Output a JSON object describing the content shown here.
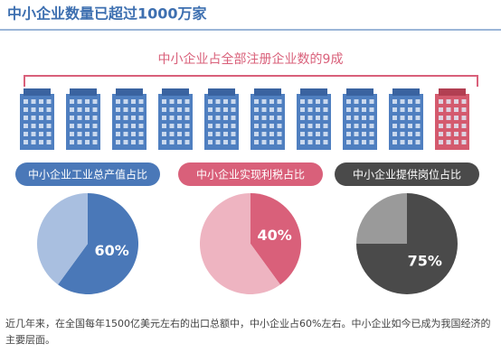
{
  "title": "中小企业数量已超过1000万家",
  "subtitle": "中小企业占全部注册企业数的9成",
  "note": "近几年来，在全国每年1500亿美元左右的出口总额中，中小企业占60%左右。中小企业如今已成为我国经济的主要层面。",
  "chart_data": [
    {
      "type": "pie",
      "title": "中小企业工业总产值占比",
      "values": [
        60,
        40
      ],
      "value_labels": [
        "60%",
        null
      ],
      "colors": [
        "#4a78b8",
        "#a9bfe0"
      ],
      "title_color": "#4a78b8"
    },
    {
      "type": "pie",
      "title": "中小企业实现利税占比",
      "values": [
        40,
        60
      ],
      "value_labels": [
        "40%",
        null
      ],
      "colors": [
        "#d9607a",
        "#eeb4c1"
      ],
      "title_color": "#d9607a"
    },
    {
      "type": "pie",
      "title": "中小企业提供岗位占比",
      "values": [
        75,
        25
      ],
      "value_labels": [
        "75%",
        null
      ],
      "colors": [
        "#4a4a4a",
        "#9a9a9a"
      ],
      "title_color": "#4a4a4a"
    }
  ]
}
